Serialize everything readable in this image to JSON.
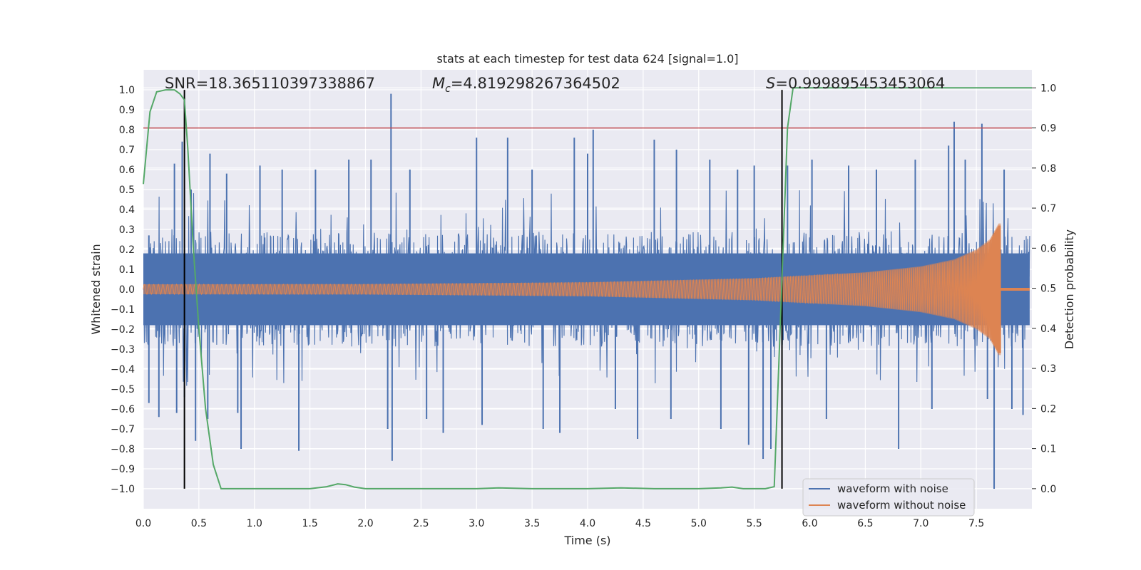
{
  "chart_data": {
    "type": "line",
    "title": "stats at each timestep for test data 624 [signal=1.0]",
    "xlabel": "Time (s)",
    "ylabel": "Whitened strain",
    "y2label": "Detection probability",
    "xlim": [
      0.0,
      8.0
    ],
    "ylim": [
      -1.1,
      1.1
    ],
    "y2lim": [
      -0.05,
      1.045
    ],
    "x_ticks": [
      "0.0",
      "0.5",
      "1.0",
      "1.5",
      "2.0",
      "2.5",
      "3.0",
      "3.5",
      "4.0",
      "4.5",
      "5.0",
      "5.5",
      "6.0",
      "6.5",
      "7.0",
      "7.5"
    ],
    "y_ticks": [
      "1.0",
      "0.9",
      "0.8",
      "0.7",
      "0.6",
      "0.5",
      "0.4",
      "0.3",
      "0.2",
      "0.1",
      "0.0",
      "−0.1",
      "−0.2",
      "−0.3",
      "−0.4",
      "−0.5",
      "−0.6",
      "−0.7",
      "−0.8",
      "−0.9",
      "−1.0"
    ],
    "y2_ticks": [
      "1.0",
      "0.9",
      "0.8",
      "0.7",
      "0.6",
      "0.5",
      "0.4",
      "0.3",
      "0.2",
      "0.1",
      "0.0"
    ],
    "annotations": {
      "snr": "SNR=18.365110397338867",
      "mc_symbol": "M",
      "mc_sub": "c",
      "mc_value": "=4.819298267364502",
      "s_symbol": "S",
      "s_value": "=0.999895453453064"
    },
    "legend": [
      {
        "label": "waveform with noise",
        "color": "#4c72b0"
      },
      {
        "label": "waveform without noise",
        "color": "#dd8452"
      }
    ],
    "series": [
      {
        "name": "waveform with noise",
        "color": "#4c72b0",
        "band_half_width": 0.18,
        "spikes": [
          {
            "t": 0.05,
            "v": 0.27
          },
          {
            "t": 0.05,
            "v": -0.57
          },
          {
            "t": 0.14,
            "v": -0.64
          },
          {
            "t": 0.28,
            "v": 0.63
          },
          {
            "t": 0.3,
            "v": -0.62
          },
          {
            "t": 0.35,
            "v": 0.74
          },
          {
            "t": 0.37,
            "v": -0.54
          },
          {
            "t": 0.43,
            "v": 0.5
          },
          {
            "t": 0.47,
            "v": -0.76
          },
          {
            "t": 0.58,
            "v": -0.65
          },
          {
            "t": 0.6,
            "v": 0.68
          },
          {
            "t": 0.75,
            "v": 0.58
          },
          {
            "t": 0.85,
            "v": -0.62
          },
          {
            "t": 0.88,
            "v": -0.8
          },
          {
            "t": 1.05,
            "v": 0.62
          },
          {
            "t": 1.25,
            "v": 0.6
          },
          {
            "t": 1.4,
            "v": -0.81
          },
          {
            "t": 1.55,
            "v": 0.6
          },
          {
            "t": 1.85,
            "v": 0.65
          },
          {
            "t": 2.05,
            "v": 0.65
          },
          {
            "t": 2.2,
            "v": -0.7
          },
          {
            "t": 2.23,
            "v": 0.98
          },
          {
            "t": 2.24,
            "v": -0.86
          },
          {
            "t": 2.4,
            "v": 0.6
          },
          {
            "t": 2.55,
            "v": -0.65
          },
          {
            "t": 2.7,
            "v": -0.72
          },
          {
            "t": 3.0,
            "v": 0.76
          },
          {
            "t": 3.05,
            "v": -0.68
          },
          {
            "t": 3.28,
            "v": 0.76
          },
          {
            "t": 3.5,
            "v": 0.6
          },
          {
            "t": 3.6,
            "v": -0.7
          },
          {
            "t": 3.75,
            "v": -0.72
          },
          {
            "t": 3.88,
            "v": 0.76
          },
          {
            "t": 4.0,
            "v": 0.68
          },
          {
            "t": 4.05,
            "v": 0.8
          },
          {
            "t": 4.25,
            "v": -0.6
          },
          {
            "t": 4.45,
            "v": -0.75
          },
          {
            "t": 4.6,
            "v": 0.75
          },
          {
            "t": 4.75,
            "v": -0.65
          },
          {
            "t": 4.8,
            "v": 0.7
          },
          {
            "t": 5.1,
            "v": 0.65
          },
          {
            "t": 5.2,
            "v": -0.7
          },
          {
            "t": 5.35,
            "v": 0.6
          },
          {
            "t": 5.45,
            "v": -0.78
          },
          {
            "t": 5.5,
            "v": 0.62
          },
          {
            "t": 5.58,
            "v": -0.85
          },
          {
            "t": 5.65,
            "v": -0.8
          },
          {
            "t": 5.8,
            "v": 0.62
          },
          {
            "t": 6.02,
            "v": 0.65
          },
          {
            "t": 6.15,
            "v": -0.65
          },
          {
            "t": 6.35,
            "v": 0.62
          },
          {
            "t": 6.6,
            "v": 0.6
          },
          {
            "t": 6.8,
            "v": -0.8
          },
          {
            "t": 6.95,
            "v": 0.65
          },
          {
            "t": 7.1,
            "v": -0.6
          },
          {
            "t": 7.25,
            "v": 0.72
          },
          {
            "t": 7.3,
            "v": 0.84
          },
          {
            "t": 7.4,
            "v": 0.65
          },
          {
            "t": 7.55,
            "v": 0.83
          },
          {
            "t": 7.6,
            "v": -0.55
          },
          {
            "t": 7.66,
            "v": -1.0
          },
          {
            "t": 7.75,
            "v": 0.6
          },
          {
            "t": 7.82,
            "v": -0.6
          },
          {
            "t": 7.92,
            "v": -0.63
          }
        ]
      },
      {
        "name": "waveform without noise",
        "color": "#dd8452",
        "merger_time": 7.72,
        "envelope": [
          {
            "t": 0.0,
            "v": 0.025
          },
          {
            "t": 2.0,
            "v": 0.026
          },
          {
            "t": 4.0,
            "v": 0.035
          },
          {
            "t": 5.5,
            "v": 0.055
          },
          {
            "t": 6.5,
            "v": 0.085
          },
          {
            "t": 7.0,
            "v": 0.115
          },
          {
            "t": 7.3,
            "v": 0.15
          },
          {
            "t": 7.5,
            "v": 0.2
          },
          {
            "t": 7.62,
            "v": 0.25
          },
          {
            "t": 7.7,
            "v": 0.33
          },
          {
            "t": 7.72,
            "v": 0.33
          }
        ]
      },
      {
        "name": "detection probability",
        "color": "#55a868",
        "axis": "right",
        "x": [
          0.0,
          0.06,
          0.12,
          0.2,
          0.28,
          0.33,
          0.37,
          0.4,
          0.45,
          0.5,
          0.56,
          0.63,
          0.7,
          1.0,
          1.5,
          1.65,
          1.75,
          1.82,
          1.9,
          2.0,
          2.5,
          3.0,
          3.2,
          3.5,
          4.0,
          4.3,
          4.6,
          5.0,
          5.2,
          5.3,
          5.4,
          5.6,
          5.68,
          5.72,
          5.76,
          5.8,
          5.85,
          8.0
        ],
        "y": [
          0.76,
          0.94,
          0.99,
          0.995,
          0.995,
          0.985,
          0.97,
          0.85,
          0.6,
          0.4,
          0.2,
          0.06,
          0.0,
          0.0,
          0.0,
          0.005,
          0.012,
          0.01,
          0.004,
          0.0,
          0.0,
          0.0,
          0.002,
          0.0,
          0.0,
          0.002,
          0.0,
          0.0,
          0.002,
          0.004,
          0.0,
          0.0,
          0.005,
          0.3,
          0.6,
          0.9,
          1.0,
          1.0
        ]
      }
    ],
    "threshold": {
      "axis": "right",
      "value": 0.9,
      "color": "#c44e52"
    },
    "vlines": [
      0.37,
      5.75
    ],
    "vline_color": "#000000"
  }
}
